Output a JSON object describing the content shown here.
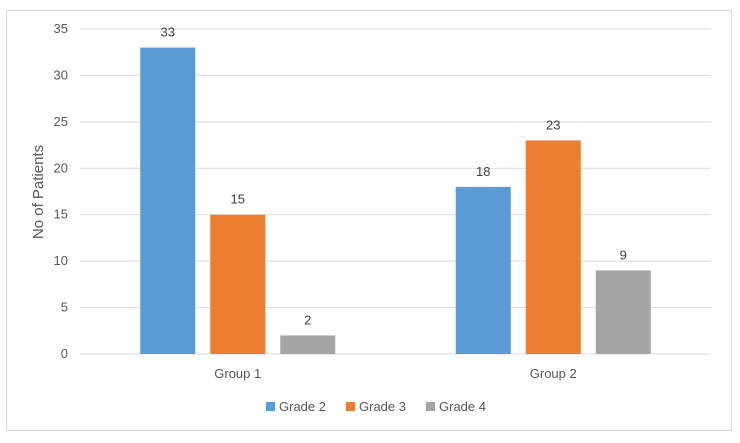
{
  "chart_data": {
    "type": "bar",
    "title": "",
    "xlabel": "",
    "ylabel": "No of Patients",
    "categories": [
      "Group 1",
      "Group 2"
    ],
    "series": [
      {
        "name": "Grade 2",
        "values": [
          33,
          18
        ],
        "color": "#5b9bd5"
      },
      {
        "name": "Grade 3",
        "values": [
          15,
          23
        ],
        "color": "#ed7d31"
      },
      {
        "name": "Grade 4",
        "values": [
          2,
          9
        ],
        "color": "#a5a5a5"
      }
    ],
    "ylim": [
      0,
      35
    ],
    "yticks": [
      0,
      5,
      10,
      15,
      20,
      25,
      30,
      35
    ],
    "grid": true,
    "legend_position": "bottom",
    "gridline_color": "#d9d9d9"
  }
}
